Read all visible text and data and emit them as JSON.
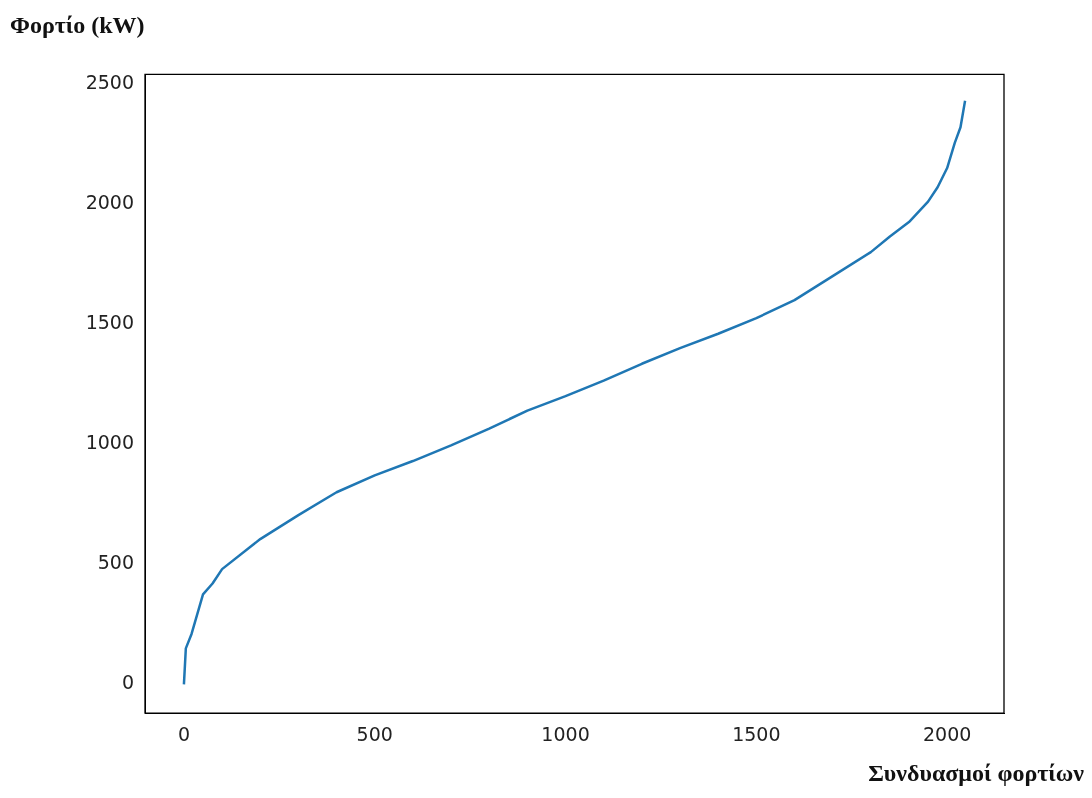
{
  "chart_data": {
    "type": "line",
    "xlabel": "Συνδυασμοί φορτίων",
    "ylabel": "Φορτίο (kW)",
    "x": [
      0,
      5,
      20,
      50,
      75,
      100,
      200,
      300,
      400,
      500,
      600,
      700,
      800,
      900,
      1000,
      1100,
      1200,
      1300,
      1400,
      1500,
      1600,
      1700,
      1800,
      1850,
      1900,
      1950,
      1975,
      2000,
      2020,
      2035,
      2047
    ],
    "series": [
      {
        "color": "#1f77b4",
        "values": [
          0,
          150,
          210,
          375,
          420,
          480,
          605,
          705,
          800,
          870,
          930,
          995,
          1065,
          1140,
          1200,
          1265,
          1335,
          1400,
          1460,
          1525,
          1600,
          1700,
          1800,
          1865,
          1925,
          2010,
          2070,
          2150,
          2255,
          2320,
          2430
        ]
      }
    ],
    "xlim": [
      -102,
      2149
    ],
    "ylim": [
      -120,
      2540
    ],
    "xticks": [
      0,
      500,
      1000,
      1500,
      2000
    ],
    "yticks": [
      0,
      500,
      1000,
      1500,
      2000,
      2500
    ],
    "grid": false,
    "legend": false,
    "marker": "none",
    "line_style": "solid"
  }
}
